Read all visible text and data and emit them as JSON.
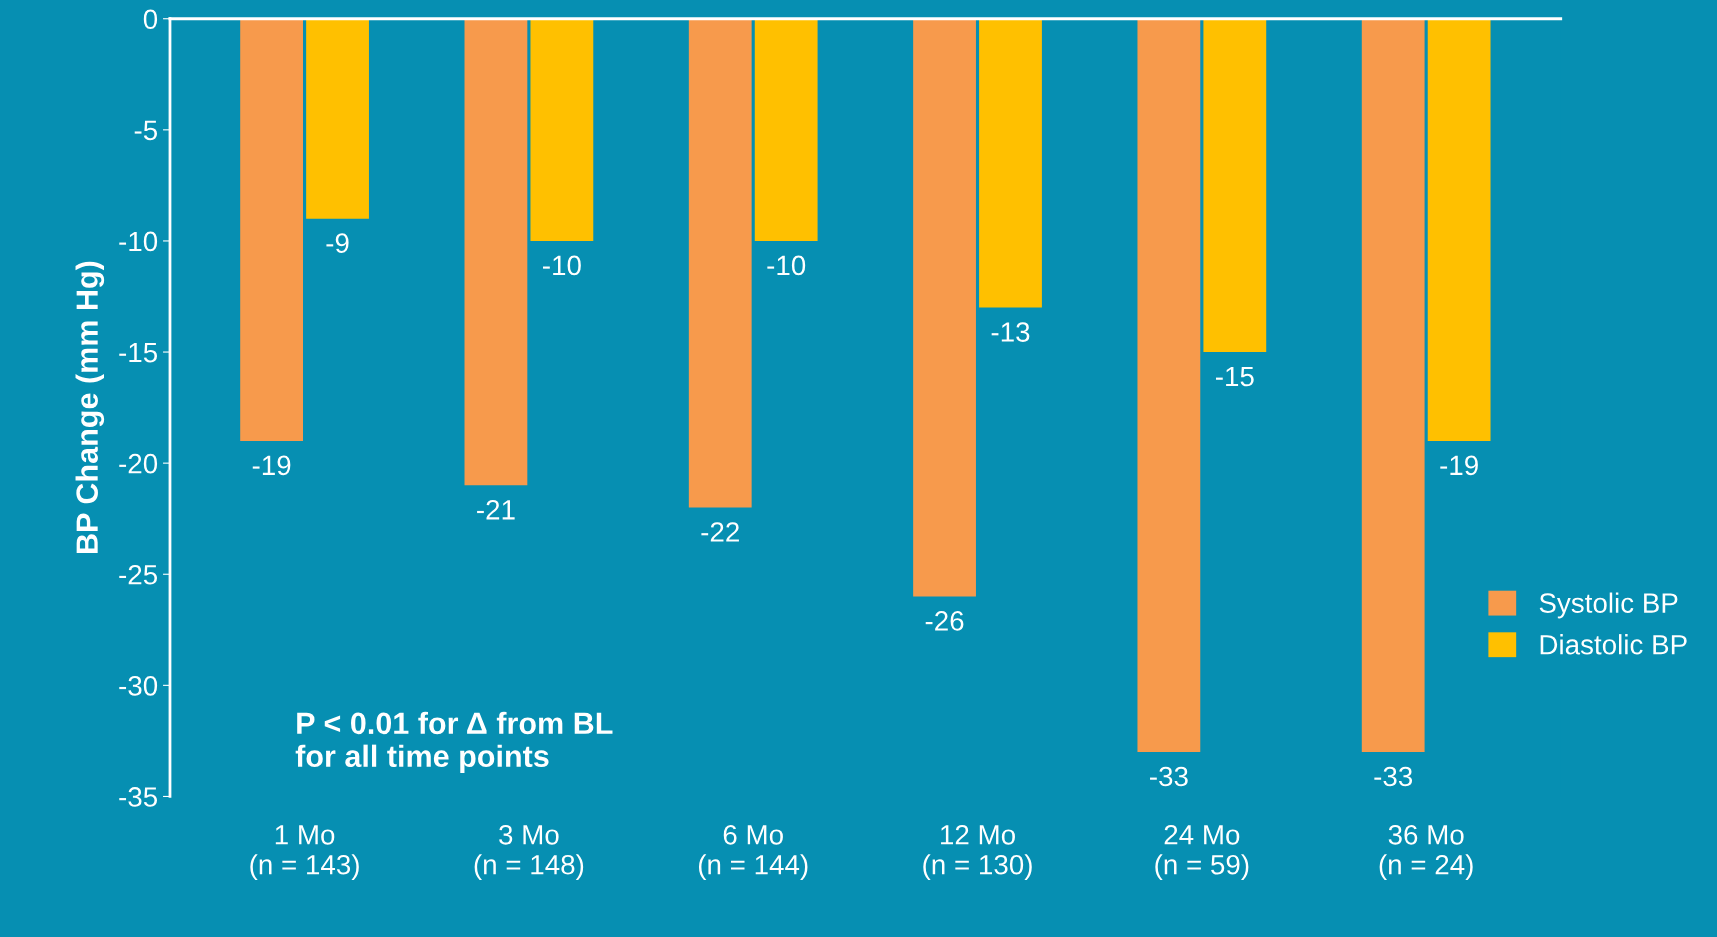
{
  "chart_data": {
    "type": "bar",
    "ylabel": "BP Change (mm Hg)",
    "categories": [
      "1 Mo\n(n = 143)",
      "3 Mo\n(n = 148)",
      "6 Mo\n(n = 144)",
      "12 Mo\n(n = 130)",
      "24 Mo\n(n = 59)",
      "36 Mo\n(n = 24)"
    ],
    "series": [
      {
        "name": "Systolic BP",
        "color": "#f79a4c",
        "values": [
          -19,
          -21,
          -22,
          -26,
          -33,
          -33
        ]
      },
      {
        "name": "Diastolic BP",
        "color": "#ffc000",
        "values": [
          -9,
          -10,
          -10,
          -13,
          -15,
          -19
        ]
      }
    ],
    "ylim": [
      -35,
      0
    ],
    "yticks": [
      -35,
      -30,
      -25,
      -20,
      -15,
      -10,
      -5,
      0
    ],
    "data_labels": true,
    "grid": false,
    "legend": "right",
    "annotations": [
      "P < 0.01 for Δ from BL\nfor all time points"
    ]
  }
}
